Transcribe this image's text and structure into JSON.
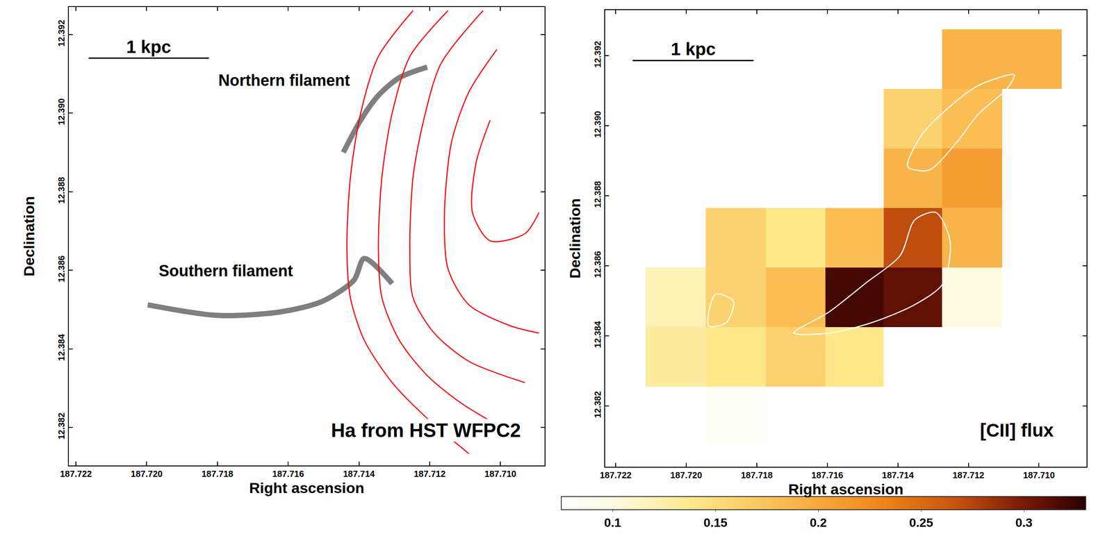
{
  "chart_data": [
    {
      "type": "lines",
      "x_label": "Right ascension",
      "y_label": "Declination",
      "xlim": [
        187.7222,
        187.70875
      ],
      "ylim": [
        12.38103,
        12.3927
      ],
      "xticks": [
        187.722,
        {
          "value": 187.72,
          "label": "187.720"
        },
        187.718,
        187.716,
        187.714,
        187.712,
        {
          "value": 187.71,
          "label": "187.710"
        }
      ],
      "yticks": [
        12.382,
        12.384,
        12.386,
        12.388,
        {
          "value": 12.39,
          "label": "12.390"
        },
        12.392
      ],
      "scale_bar": {
        "label": "1 kpc",
        "x": [
          187.72164,
          187.71824
        ],
        "y": 12.3914
      },
      "label": "Ha from HST WFPC2",
      "series": [
        {
          "name": "Northern filament",
          "color": "#555555",
          "x": [
            187.71444,
            187.71395,
            187.71345,
            187.71286,
            187.71207
          ],
          "y": [
            12.389,
            12.38982,
            12.39045,
            12.3909,
            12.39117
          ]
        },
        {
          "name": "Southern filament",
          "color": "#555555",
          "x": [
            187.71997,
            187.71799,
            187.71622,
            187.71503,
            187.71414,
            187.71385,
            187.71306
          ],
          "y": [
            12.38512,
            12.38485,
            12.38494,
            12.38521,
            12.38575,
            12.3863,
            12.38566
          ]
        },
        {
          "color": "#ff0000",
          "x": [
            187.71247,
            187.71345,
            187.71395,
            187.71424,
            187.71434,
            187.71424,
            187.71385,
            187.71306,
            187.71207,
            187.71089
          ],
          "y": [
            12.39261,
            12.39144,
            12.39,
            12.38837,
            12.38657,
            12.3853,
            12.38422,
            12.38314,
            12.38223,
            12.38133
          ]
        },
        {
          "color": "#ff0000",
          "x": [
            187.71148,
            187.71256,
            187.71306,
            187.71335,
            187.71345,
            187.71335,
            187.71286,
            187.71207,
            187.71108,
            187.7097
          ],
          "y": [
            12.39261,
            12.39144,
            12.39,
            12.38837,
            12.38657,
            12.3853,
            12.38422,
            12.38332,
            12.3826,
            12.38187
          ]
        },
        {
          "color": "#ff0000",
          "x": [
            187.71049,
            187.71168,
            187.71217,
            187.71247,
            187.71256,
            187.71247,
            187.71187,
            187.71089,
            187.70931
          ],
          "y": [
            12.39261,
            12.39126,
            12.38982,
            12.38837,
            12.38657,
            12.3853,
            12.3844,
            12.38368,
            12.38314
          ]
        },
        {
          "color": "#ff0000",
          "x": [
            187.7101,
            187.71089,
            187.71138,
            187.71158,
            187.71148,
            187.71089,
            187.7097,
            187.70891
          ],
          "y": [
            12.39162,
            12.39054,
            12.38927,
            12.38747,
            12.38603,
            12.38512,
            12.38458,
            12.3844
          ]
        },
        {
          "color": "#ff0000",
          "x": [
            187.71029,
            187.71069,
            187.71079,
            187.71029,
            187.70931,
            187.70891
          ],
          "y": [
            12.38982,
            12.38873,
            12.38747,
            12.38675,
            12.38693,
            12.38747
          ]
        }
      ]
    },
    {
      "type": "heatmap",
      "x_label": "Right ascension",
      "y_label": "Declination",
      "xlim": [
        187.7223,
        187.70865
      ],
      "ylim": [
        12.38026,
        12.3933
      ],
      "xticks": [
        187.722,
        {
          "value": 187.72,
          "label": "187.720"
        },
        187.718,
        187.716,
        187.714,
        187.712,
        {
          "value": 187.71,
          "label": "187.710"
        }
      ],
      "yticks": [
        12.382,
        12.384,
        12.386,
        12.388,
        {
          "value": 12.39,
          "label": "12.390"
        },
        12.392
      ],
      "scale_bar": {
        "label": "1 kpc",
        "x": [
          187.72152,
          187.71809
        ],
        "y": 12.39186
      },
      "label": "[CII] flux",
      "x": [
        187.7102,
        187.7119,
        187.7136,
        187.7152,
        187.7169,
        187.7186,
        187.7203
      ],
      "y": [
        12.3817,
        12.3834,
        12.3851,
        12.3868,
        12.3885,
        12.3902,
        12.3919
      ],
      "z": [
        [
          null,
          null,
          null,
          null,
          null,
          0.08,
          null
        ],
        [
          null,
          null,
          null,
          0.14,
          0.16,
          0.14,
          0.13
        ],
        [
          null,
          0.1,
          0.31,
          0.32,
          0.18,
          0.16,
          0.12
        ],
        [
          null,
          0.19,
          0.27,
          0.18,
          0.14,
          0.16,
          null
        ],
        [
          null,
          0.21,
          0.19,
          null,
          null,
          null,
          null
        ],
        [
          null,
          0.18,
          0.16,
          null,
          null,
          null,
          null
        ],
        [
          0.19,
          0.19,
          null,
          null,
          null,
          null,
          null
        ]
      ],
      "colorbar": {
        "range": [
          0.075,
          0.33
        ],
        "ticks": [
          0.1,
          0.15,
          0.2,
          0.25,
          0.3
        ]
      },
      "series": [
        {
          "color": "#ffffff",
          "x": [
            187.71372,
            187.71332,
            187.71252,
            187.71171,
            187.7107,
            187.71091,
            187.71171,
            187.71232,
            187.71312,
            187.71372
          ],
          "y": [
            12.38883,
            12.38974,
            12.39055,
            12.39115,
            12.39145,
            12.39105,
            12.39034,
            12.38954,
            12.38873,
            12.38883
          ]
        },
        {
          "color": "#ffffff",
          "x": [
            187.71695,
            187.71594,
            187.71493,
            187.71393,
            187.71352,
            187.71292,
            187.71252,
            187.71272,
            187.71352,
            187.71473,
            187.71594,
            187.71695
          ],
          "y": [
            12.38408,
            12.38469,
            12.38549,
            12.3863,
            12.38731,
            12.38752,
            12.38671,
            12.38549,
            12.38489,
            12.38438,
            12.38408,
            12.38408
          ]
        },
        {
          "color": "#ffffff",
          "x": [
            187.71936,
            187.71916,
            187.71866,
            187.71886,
            187.71936,
            187.71936
          ],
          "y": [
            12.38469,
            12.38519,
            12.38499,
            12.38438,
            12.38428,
            12.38469
          ]
        }
      ]
    }
  ]
}
